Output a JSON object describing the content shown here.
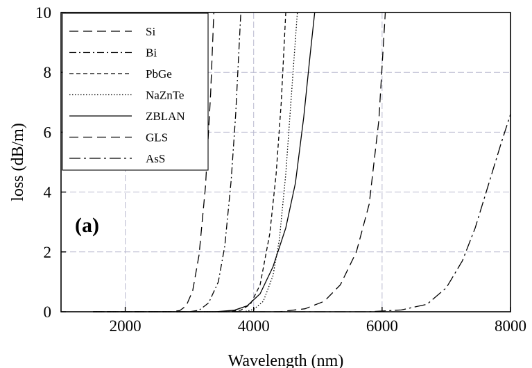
{
  "chart_data": {
    "type": "line",
    "panel_label": "(a)",
    "xlabel": "Wavelength (nm)",
    "ylabel": "loss (dB/m)",
    "xlim": [
      1000,
      8000
    ],
    "ylim": [
      0,
      10
    ],
    "x_ticks": [
      2000,
      4000,
      6000,
      8000
    ],
    "y_ticks": [
      0,
      2,
      4,
      6,
      8,
      10
    ],
    "grid": true,
    "legend_position": "top-left",
    "series": [
      {
        "name": "Si",
        "dash": "long-dash",
        "points": [
          [
            1500,
            0
          ],
          [
            2700,
            0
          ],
          [
            2850,
            0.04
          ],
          [
            2950,
            0.2
          ],
          [
            3050,
            0.7
          ],
          [
            3150,
            1.9
          ],
          [
            3250,
            4.2
          ],
          [
            3330,
            7.3
          ],
          [
            3380,
            10
          ]
        ]
      },
      {
        "name": "Bi",
        "dash": "dash-dot",
        "points": [
          [
            1500,
            0
          ],
          [
            3000,
            0
          ],
          [
            3150,
            0.05
          ],
          [
            3300,
            0.3
          ],
          [
            3450,
            1.0
          ],
          [
            3550,
            2.2
          ],
          [
            3650,
            4.4
          ],
          [
            3720,
            6.6
          ],
          [
            3800,
            10
          ]
        ]
      },
      {
        "name": "PbGe",
        "dash": "short-dash",
        "points": [
          [
            1500,
            0
          ],
          [
            3600,
            0
          ],
          [
            3800,
            0.05
          ],
          [
            3950,
            0.25
          ],
          [
            4100,
            0.9
          ],
          [
            4250,
            2.6
          ],
          [
            4350,
            4.6
          ],
          [
            4430,
            7.0
          ],
          [
            4500,
            10
          ]
        ]
      },
      {
        "name": "NaZnTe",
        "dash": "dotted",
        "points": [
          [
            1500,
            0
          ],
          [
            3850,
            0
          ],
          [
            4000,
            0.08
          ],
          [
            4150,
            0.35
          ],
          [
            4300,
            1.2
          ],
          [
            4400,
            2.4
          ],
          [
            4500,
            4.6
          ],
          [
            4580,
            7.0
          ],
          [
            4680,
            10
          ]
        ]
      },
      {
        "name": "ZBLAN",
        "dash": "solid",
        "points": [
          [
            1500,
            0
          ],
          [
            3400,
            0
          ],
          [
            3700,
            0.05
          ],
          [
            3900,
            0.2
          ],
          [
            4100,
            0.6
          ],
          [
            4300,
            1.5
          ],
          [
            4500,
            2.8
          ],
          [
            4650,
            4.3
          ],
          [
            4780,
            6.5
          ],
          [
            4880,
            8.6
          ],
          [
            4950,
            10
          ]
        ]
      },
      {
        "name": "GLS",
        "dash": "long-dash",
        "points": [
          [
            1500,
            0
          ],
          [
            4400,
            0
          ],
          [
            4800,
            0.1
          ],
          [
            5100,
            0.35
          ],
          [
            5350,
            0.9
          ],
          [
            5600,
            2.0
          ],
          [
            5800,
            3.6
          ],
          [
            5950,
            6.4
          ],
          [
            6050,
            10
          ]
        ]
      },
      {
        "name": "AsS",
        "dash": "dash-dot-long",
        "points": [
          [
            1500,
            0
          ],
          [
            5800,
            0
          ],
          [
            6300,
            0.06
          ],
          [
            6700,
            0.25
          ],
          [
            7000,
            0.8
          ],
          [
            7250,
            1.7
          ],
          [
            7450,
            2.8
          ],
          [
            7650,
            4.2
          ],
          [
            7850,
            5.6
          ],
          [
            8000,
            6.6
          ]
        ]
      }
    ]
  }
}
